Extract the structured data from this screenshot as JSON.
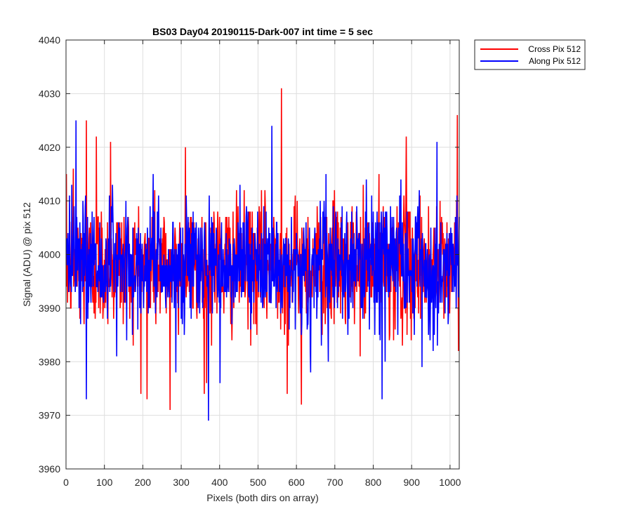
{
  "chart_data": {
    "type": "line",
    "title": "BS03 Day04 20190115-Dark-007 int time = 5 sec",
    "xlabel": "Pixels (both dirs on array)",
    "ylabel": "Signal (ADU) @ pix 512",
    "xlim": [
      0,
      1024
    ],
    "ylim": [
      3960,
      4040
    ],
    "xticks": [
      0,
      100,
      200,
      300,
      400,
      500,
      600,
      700,
      800,
      900,
      1000
    ],
    "yticks": [
      3960,
      3970,
      3980,
      3990,
      4000,
      4010,
      4020,
      4030,
      4040
    ],
    "grid": true,
    "legend_position": "outside-top-right",
    "n_points": 1024,
    "series": [
      {
        "name": "Cross Pix 512",
        "color": "#ff0000",
        "mean": 3998,
        "std": 6,
        "min": 3971,
        "max": 4031,
        "peaks": [
          [
            18,
            4016
          ],
          [
            52,
            4025
          ],
          [
            78,
            4022
          ],
          [
            115,
            4021
          ],
          [
            210,
            3973
          ],
          [
            270,
            3971
          ],
          [
            310,
            4020
          ],
          [
            365,
            3976
          ],
          [
            560,
            4031
          ],
          [
            575,
            3974
          ],
          [
            612,
            3972
          ],
          [
            885,
            4022
          ],
          [
            1018,
            4026
          ]
        ]
      },
      {
        "name": "Along Pix 512",
        "color": "#0000ff",
        "mean": 3998,
        "std": 6,
        "min": 3969,
        "max": 4025,
        "peaks": [
          [
            25,
            4025
          ],
          [
            52,
            3973
          ],
          [
            285,
            3978
          ],
          [
            370,
            3969
          ],
          [
            400,
            3976
          ],
          [
            535,
            4024
          ],
          [
            822,
            3973
          ],
          [
            965,
            4021
          ]
        ]
      }
    ]
  }
}
